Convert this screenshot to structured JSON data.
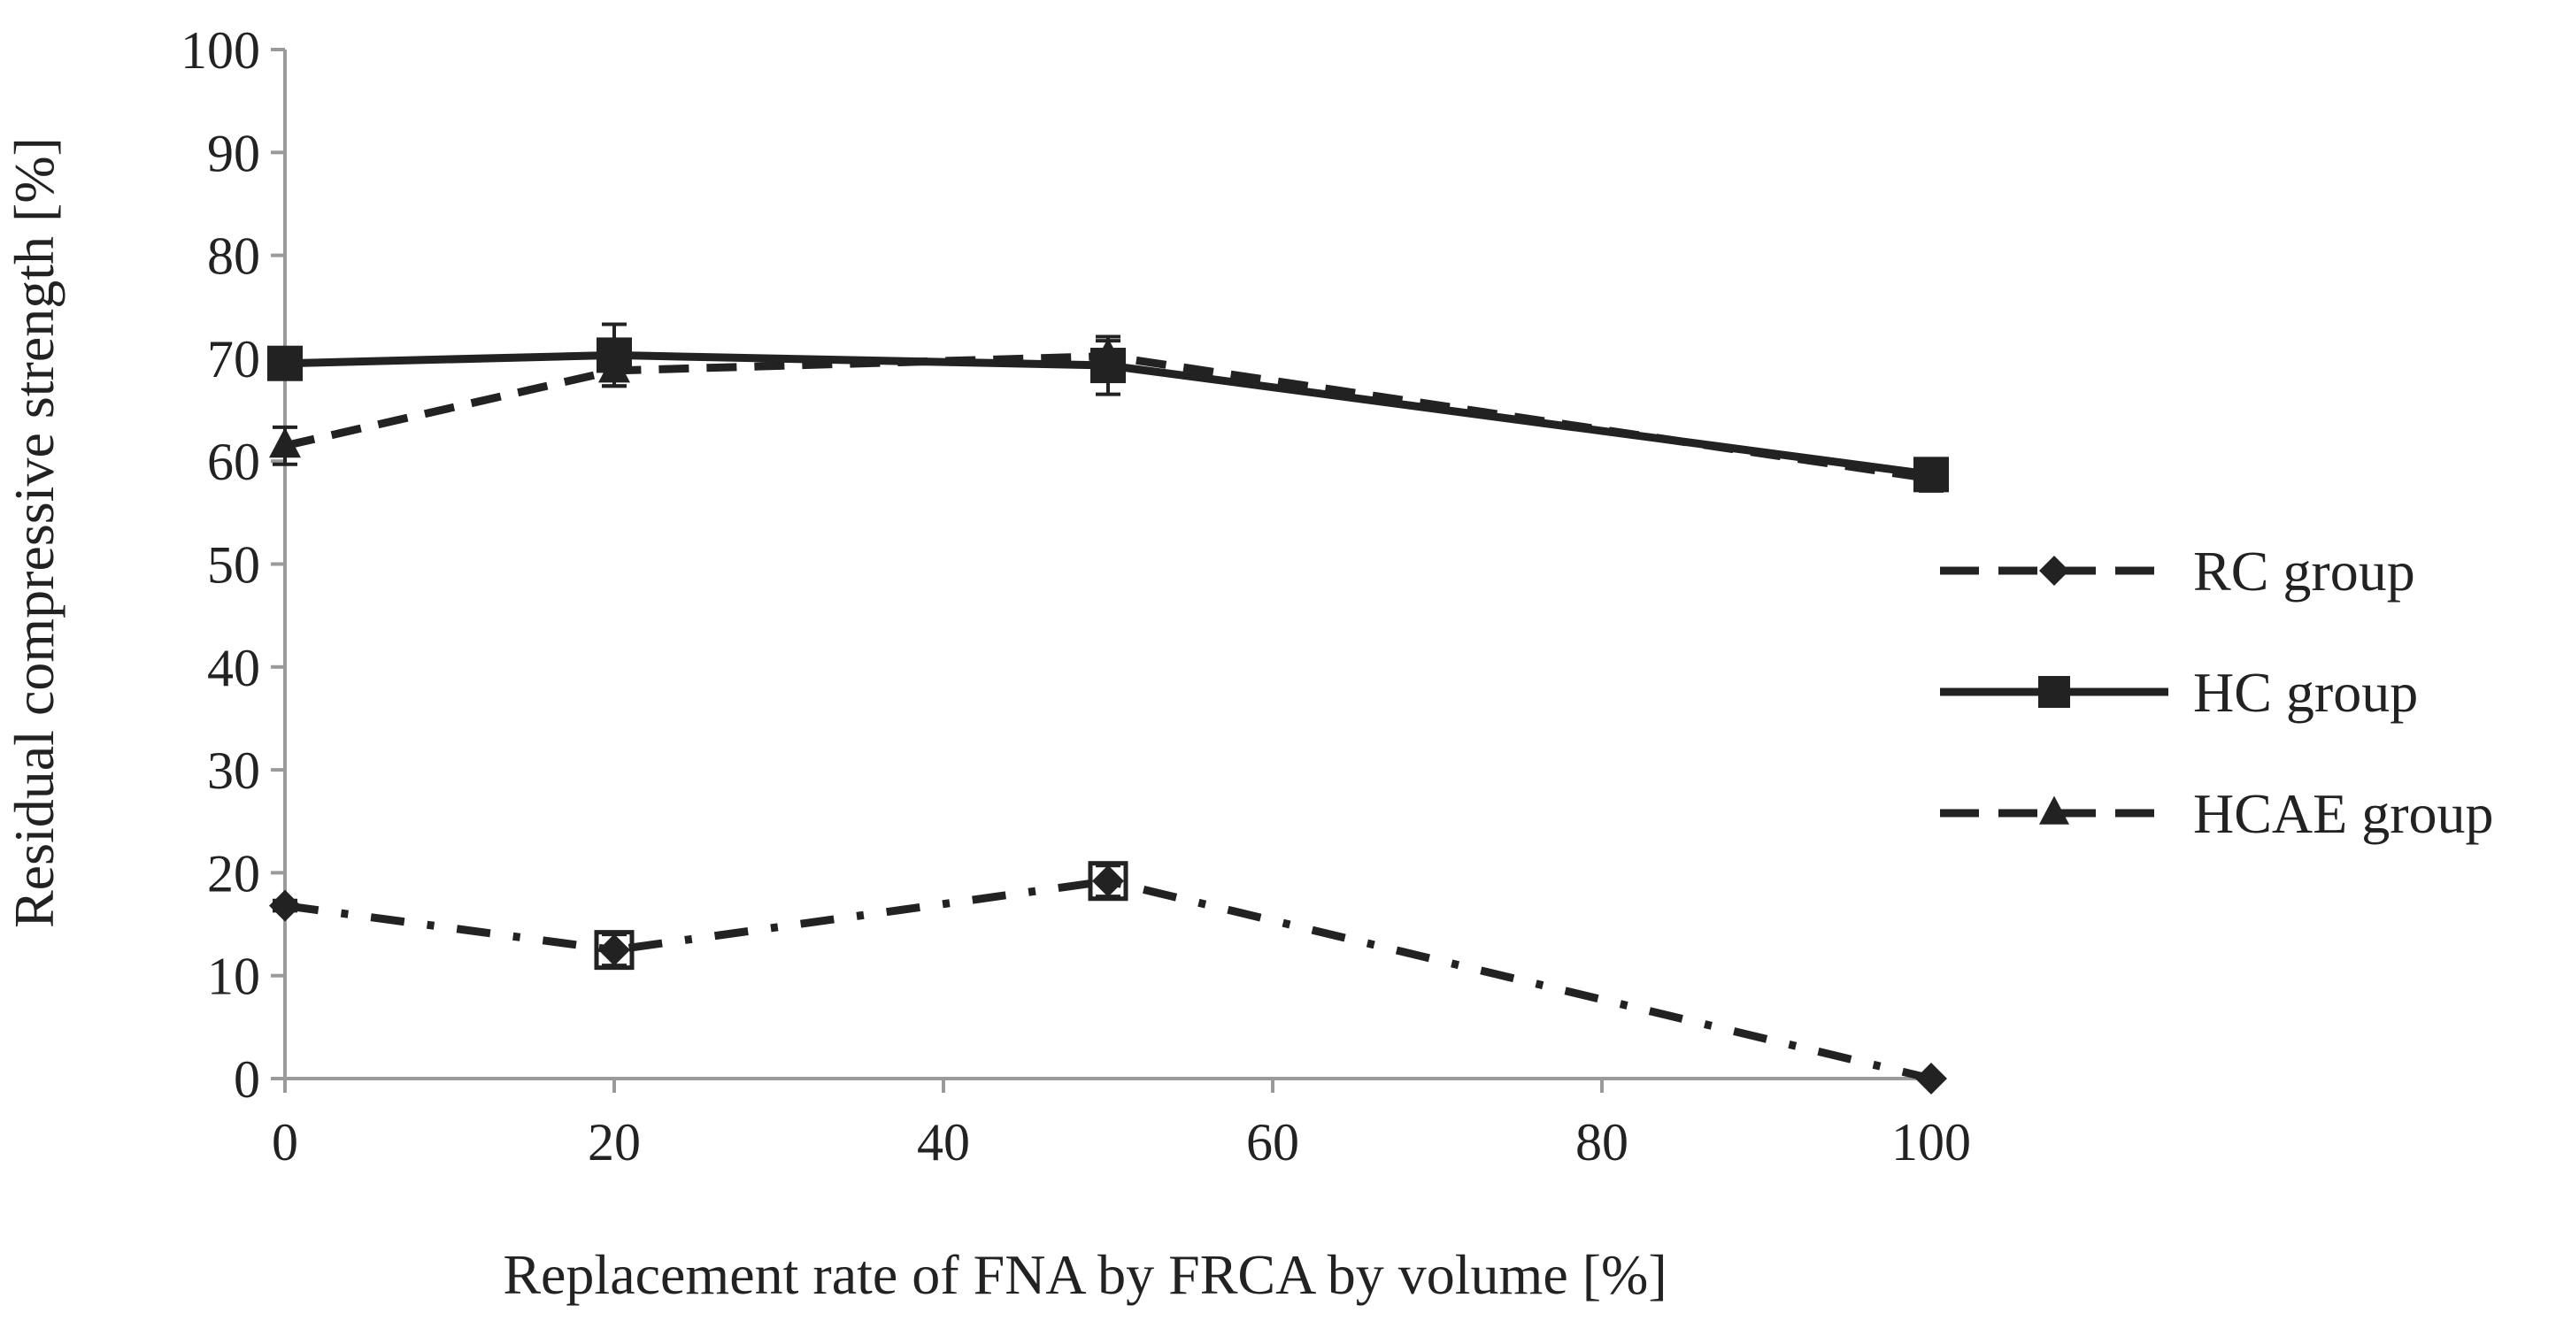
{
  "chart_data": {
    "type": "line",
    "title": "",
    "xlabel": "Replacement rate of FNA by FRCA by volume [%]",
    "ylabel": "Residual compressive strength [%]",
    "x": [
      0,
      20,
      50,
      100
    ],
    "xlim": [
      0,
      100
    ],
    "ylim": [
      0,
      100
    ],
    "xticks": [
      0,
      20,
      40,
      60,
      80,
      100
    ],
    "yticks": [
      0,
      10,
      20,
      30,
      40,
      50,
      60,
      70,
      80,
      90,
      100
    ],
    "grid": false,
    "legend_position": "right",
    "series": [
      {
        "name": "RC group",
        "values": [
          16.8,
          12.5,
          19.2,
          0
        ],
        "errors": [
          0.5,
          1.5,
          1.5,
          0
        ],
        "marker": "diamond",
        "line_style": "dash-dot",
        "legend_line_style": "dashed",
        "color": "#222222"
      },
      {
        "name": "HC group",
        "values": [
          69.5,
          70.3,
          69.3,
          58.7
        ],
        "errors": [
          0.6,
          3.0,
          2.8,
          1.5
        ],
        "marker": "square",
        "line_style": "solid",
        "legend_line_style": "solid",
        "color": "#222222"
      },
      {
        "name": "HCAE group",
        "values": [
          61.5,
          68.8,
          70.2,
          58.3
        ],
        "errors": [
          1.8,
          1.5,
          1.5,
          1.2
        ],
        "marker": "triangle",
        "line_style": "dashed",
        "legend_line_style": "dashed",
        "color": "#222222"
      }
    ]
  }
}
